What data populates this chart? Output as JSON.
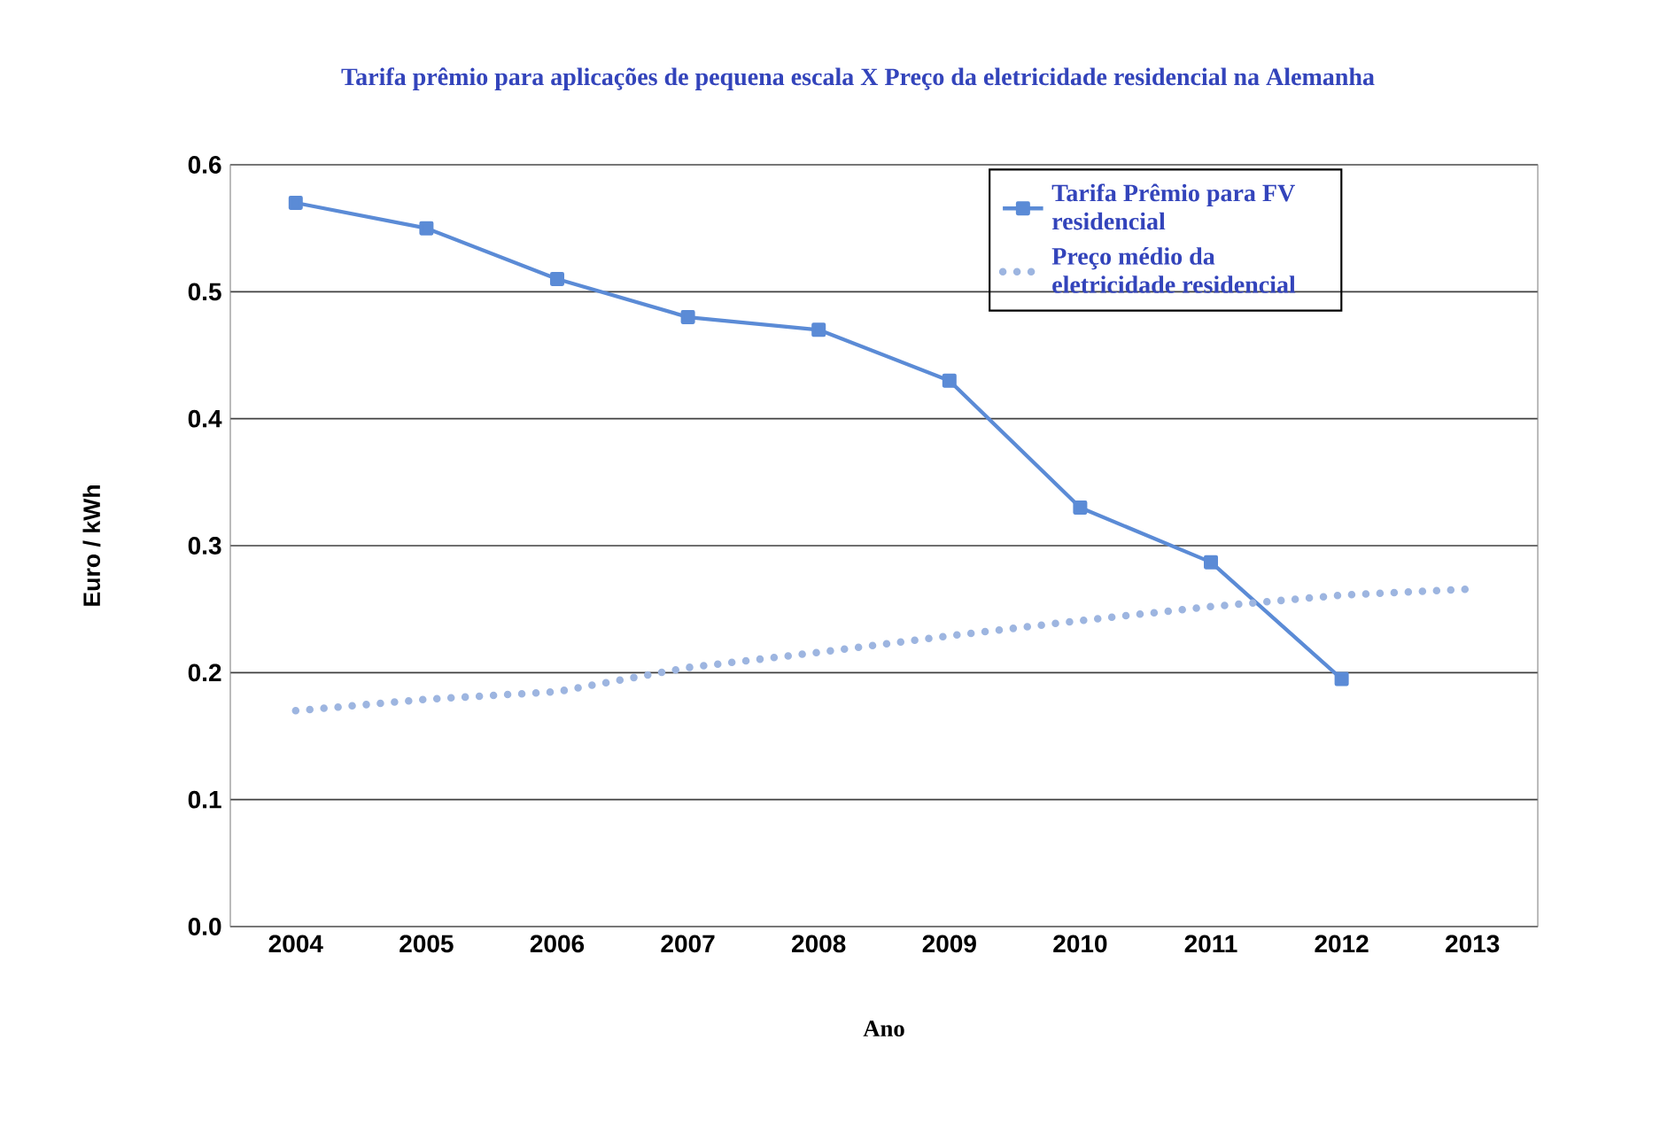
{
  "chart_data": {
    "type": "line",
    "title": "Tarifa prêmio para aplicações de pequena escala X Preço da eletricidade residencial na Alemanha",
    "xlabel": "Ano",
    "ylabel": "Euro / kWh",
    "categories": [
      "2004",
      "2005",
      "2006",
      "2007",
      "2008",
      "2009",
      "2010",
      "2011",
      "2012",
      "2013"
    ],
    "series": [
      {
        "name": "Tarifa Prêmio para FV residencial",
        "color": "#5b8bd6",
        "marker": "square",
        "line_style": "solid",
        "values": [
          0.57,
          0.55,
          0.51,
          0.48,
          0.47,
          0.43,
          0.33,
          0.287,
          0.195,
          null
        ]
      },
      {
        "name": "Preço médio da eletricidade residencial",
        "color": "#9db5e0",
        "marker": "none",
        "line_style": "dotted",
        "values": [
          0.17,
          0.179,
          0.185,
          0.204,
          0.216,
          0.229,
          0.241,
          0.252,
          0.261,
          0.266
        ]
      }
    ],
    "ylim": [
      0,
      0.6
    ],
    "yticks": [
      {
        "value": 0,
        "label": "0.0"
      },
      0.1,
      0.2,
      0.3,
      0.4,
      0.5,
      0.6
    ],
    "grid": "y",
    "legend": "top right"
  }
}
